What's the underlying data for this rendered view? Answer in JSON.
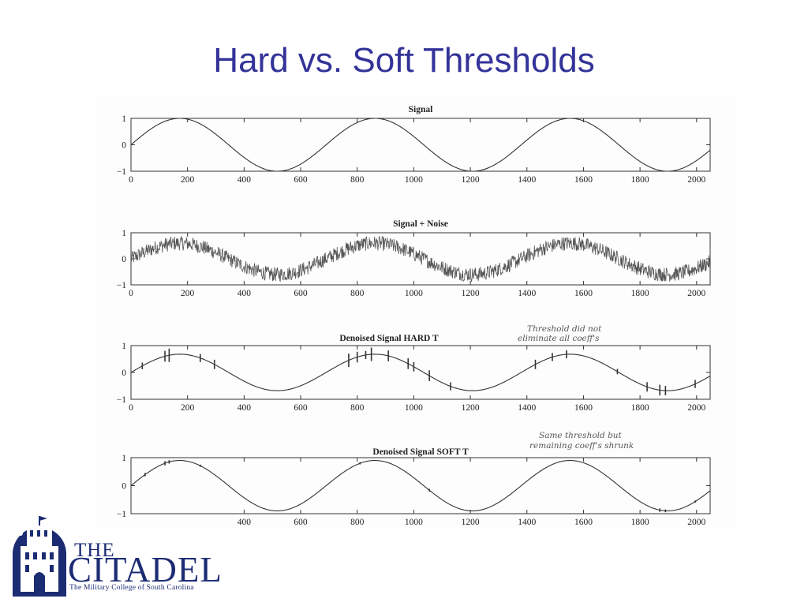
{
  "slide": {
    "title": "Hard vs. Soft Thresholds",
    "logo": {
      "line1": "THE",
      "line2": "CITADEL",
      "tagline": "The Military College of South Carolina"
    },
    "annotations": [
      "Threshold did not eliminate all coeff's",
      "Same threshold but remaining coeff's shrunk"
    ]
  },
  "chart_data": [
    {
      "type": "line",
      "title": "Signal",
      "xlim": [
        0,
        2048
      ],
      "ylim": [
        -1,
        1
      ],
      "xticks": [
        "0",
        "200",
        "400",
        "600",
        "800",
        "1000",
        "1200",
        "1400",
        "1600",
        "1800",
        "2000"
      ],
      "yticks": [
        "1",
        "0",
        "-1"
      ],
      "series": [
        {
          "function": "sine",
          "period": 690,
          "amplitude": 1,
          "noise_amplitude": 0,
          "spikes": []
        }
      ]
    },
    {
      "type": "line",
      "title": "Signal + Noise",
      "xlim": [
        0,
        2048
      ],
      "ylim": [
        -1,
        1
      ],
      "xticks": [
        "0",
        "200",
        "400",
        "600",
        "800",
        "1000",
        "1200",
        "1400",
        "1600",
        "1800",
        "2000"
      ],
      "yticks": [
        "1",
        "0",
        "-1"
      ],
      "series": [
        {
          "function": "sine",
          "period": 690,
          "amplitude": 0.6,
          "noise_amplitude": 0.28,
          "spikes": []
        }
      ]
    },
    {
      "type": "line",
      "title": "Denoised Signal HARD T",
      "annotation": "Threshold did not eliminate all coeff's",
      "xlim": [
        0,
        2048
      ],
      "ylim": [
        -1,
        1
      ],
      "xticks": [
        "0",
        "200",
        "400",
        "600",
        "800",
        "1000",
        "1200",
        "1400",
        "1600",
        "1800",
        "2000"
      ],
      "yticks": [
        "1",
        "0",
        "-1"
      ],
      "series": [
        {
          "function": "sine",
          "period": 690,
          "amplitude": 0.68,
          "noise_amplitude": 0,
          "spikes": [
            [
              40,
              0.25
            ],
            [
              120,
              0.4
            ],
            [
              135,
              0.5
            ],
            [
              245,
              0.3
            ],
            [
              295,
              0.35
            ],
            [
              770,
              0.5
            ],
            [
              800,
              0.4
            ],
            [
              830,
              0.3
            ],
            [
              850,
              0.5
            ],
            [
              910,
              0.4
            ],
            [
              980,
              0.4
            ],
            [
              1000,
              0.35
            ],
            [
              1055,
              0.4
            ],
            [
              1130,
              0.3
            ],
            [
              1430,
              0.35
            ],
            [
              1490,
              0.3
            ],
            [
              1540,
              0.3
            ],
            [
              1720,
              0.2
            ],
            [
              1825,
              0.35
            ],
            [
              1870,
              0.4
            ],
            [
              1890,
              0.35
            ],
            [
              1995,
              0.3
            ]
          ]
        }
      ]
    },
    {
      "type": "line",
      "title": "Denoised Signal SOFT T",
      "annotation": "Same threshold but remaining coeff's shrunk",
      "xlim": [
        0,
        2048
      ],
      "ylim": [
        -1,
        1
      ],
      "xticks": [
        "400",
        "600",
        "800",
        "1000",
        "1200",
        "1400",
        "1600",
        "1800",
        "2000"
      ],
      "yticks": [
        "1",
        "0",
        "-1"
      ],
      "series": [
        {
          "function": "sine",
          "period": 690,
          "amplitude": 0.9,
          "noise_amplitude": 0,
          "spikes": [
            [
              50,
              0.12
            ],
            [
              120,
              0.15
            ],
            [
              135,
              0.12
            ],
            [
              245,
              0.08
            ],
            [
              810,
              0.08
            ],
            [
              1055,
              0.1
            ],
            [
              1870,
              0.12
            ],
            [
              1890,
              0.1
            ],
            [
              1995,
              0.08
            ]
          ]
        }
      ]
    }
  ]
}
